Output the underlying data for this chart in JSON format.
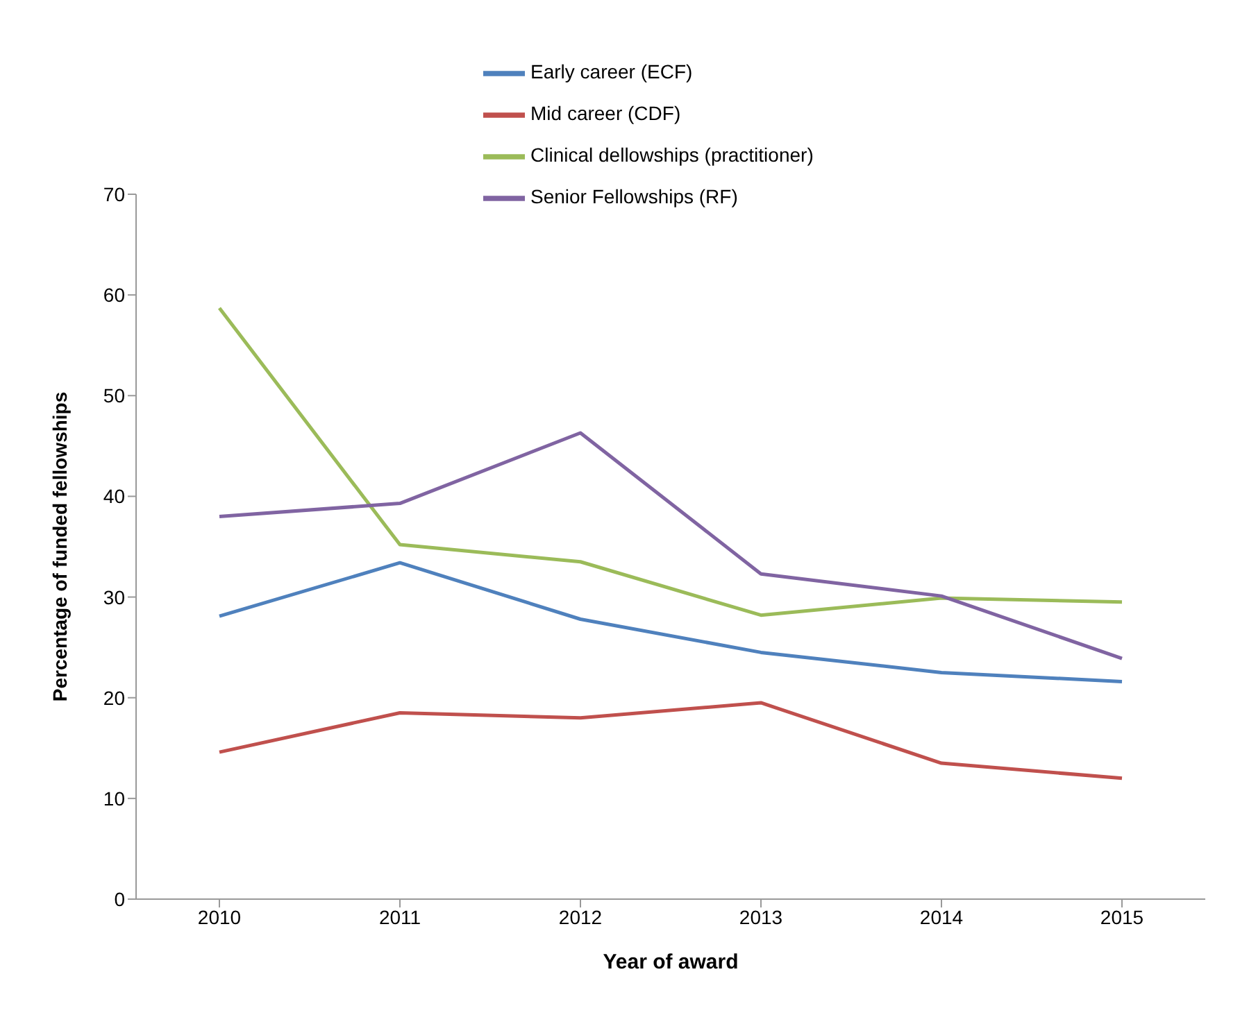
{
  "chart_data": {
    "type": "line",
    "xlabel": "Year of award",
    "ylabel": "Percentage of funded fellowships",
    "categories": [
      "2010",
      "2011",
      "2012",
      "2013",
      "2014",
      "2015"
    ],
    "series": [
      {
        "name": "Early career (ECF)",
        "color": "#4f81bd",
        "values": [
          28.1,
          33.4,
          27.8,
          24.5,
          22.5,
          21.6
        ]
      },
      {
        "name": "Mid career (CDF)",
        "color": "#c0504d",
        "values": [
          14.6,
          18.5,
          18.0,
          19.5,
          13.5,
          12.0
        ]
      },
      {
        "name": "Clinical dellowships (practitioner)",
        "color": "#9bbb59",
        "values": [
          58.7,
          35.2,
          33.5,
          28.2,
          29.9,
          29.5
        ]
      },
      {
        "name": "Senior Fellowships (RF)",
        "color": "#8064a2",
        "values": [
          38.0,
          39.3,
          46.3,
          32.3,
          30.1,
          23.9
        ]
      }
    ],
    "ylim": [
      0,
      70
    ],
    "yticks": [
      0,
      10,
      20,
      30,
      40,
      50,
      60,
      70
    ],
    "grid": false,
    "legend": "top",
    "marker": "none",
    "line_style": "solid"
  }
}
